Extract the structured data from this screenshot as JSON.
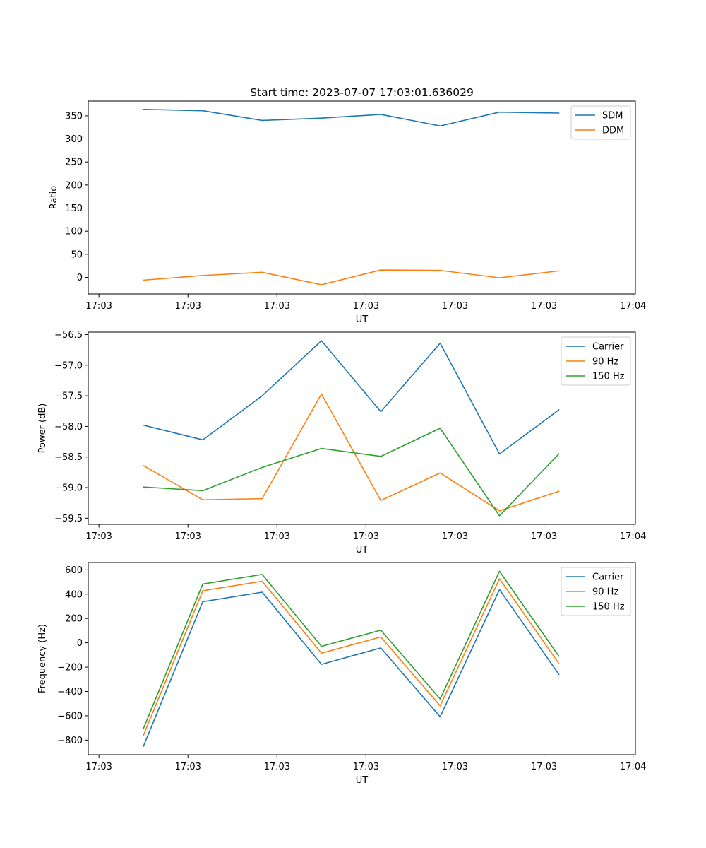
{
  "chart_data": [
    {
      "type": "line",
      "title": "Start time: 2023-07-07 17:03:01.636029",
      "xlabel": "UT",
      "ylabel": "Ratio",
      "xlim": [
        -0.18,
        9.04
      ],
      "ylim": [
        -36,
        382
      ],
      "x": [
        0.75,
        1.75,
        2.75,
        3.75,
        4.75,
        5.75,
        6.75,
        7.75
      ],
      "xticks": [
        0,
        1.5,
        3,
        4.5,
        6,
        7.5,
        9
      ],
      "xticklabels": [
        "17:03",
        "17:03",
        "17:03",
        "17:03",
        "17:03",
        "17:03",
        "17:04"
      ],
      "yticks": [
        0,
        50,
        100,
        150,
        200,
        250,
        300,
        350
      ],
      "yticklabels": [
        "0",
        "50",
        "100",
        "150",
        "200",
        "250",
        "300",
        "350"
      ],
      "legend": "top-right",
      "series": [
        {
          "name": "SDM",
          "color": "#1f77b4",
          "values": [
            364,
            361,
            340,
            345,
            353,
            328,
            358,
            356
          ]
        },
        {
          "name": "DDM",
          "color": "#ff7f0e",
          "values": [
            -6,
            4,
            11,
            -16,
            16,
            15,
            -1,
            14
          ]
        }
      ]
    },
    {
      "type": "line",
      "title": "",
      "xlabel": "UT",
      "ylabel": "Power (dB)",
      "xlim": [
        -0.18,
        9.04
      ],
      "ylim": [
        -59.6,
        -56.46
      ],
      "x": [
        0.75,
        1.75,
        2.75,
        3.75,
        4.75,
        5.75,
        6.75,
        7.75
      ],
      "xticks": [
        0,
        1.5,
        3,
        4.5,
        6,
        7.5,
        9
      ],
      "xticklabels": [
        "17:03",
        "17:03",
        "17:03",
        "17:03",
        "17:03",
        "17:03",
        "17:04"
      ],
      "yticks": [
        -59.5,
        -59.0,
        -58.5,
        -58.0,
        -57.5,
        -57.0,
        -56.5
      ],
      "yticklabels": [
        "−59.5",
        "−59.0",
        "−58.5",
        "−58.0",
        "−57.5",
        "−57.0",
        "−56.5"
      ],
      "legend": "top-right",
      "series": [
        {
          "name": "Carrier",
          "color": "#1f77b4",
          "values": [
            -57.98,
            -58.22,
            -57.5,
            -56.6,
            -57.76,
            -56.64,
            -58.45,
            -57.73
          ]
        },
        {
          "name": "90 Hz",
          "color": "#ff7f0e",
          "values": [
            -58.64,
            -59.2,
            -59.18,
            -57.47,
            -59.21,
            -58.76,
            -59.38,
            -59.06
          ]
        },
        {
          "name": "150 Hz",
          "color": "#2ca02c",
          "values": [
            -58.99,
            -59.05,
            -58.67,
            -58.36,
            -58.49,
            -58.03,
            -59.46,
            -58.45
          ]
        }
      ]
    },
    {
      "type": "line",
      "title": "",
      "xlabel": "UT",
      "ylabel": "Frequency (Hz)",
      "xlim": [
        -0.18,
        9.04
      ],
      "ylim": [
        -920,
        660
      ],
      "x": [
        0.75,
        1.75,
        2.75,
        3.75,
        4.75,
        5.75,
        6.75,
        7.75
      ],
      "xticks": [
        0,
        1.5,
        3,
        4.5,
        6,
        7.5,
        9
      ],
      "xticklabels": [
        "17:03",
        "17:03",
        "17:03",
        "17:03",
        "17:03",
        "17:03",
        "17:04"
      ],
      "yticks": [
        -800,
        -600,
        -400,
        -200,
        0,
        200,
        400,
        600
      ],
      "yticklabels": [
        "−800",
        "−600",
        "−400",
        "−200",
        "0",
        "200",
        "400",
        "600"
      ],
      "legend": "top-right",
      "series": [
        {
          "name": "Carrier",
          "color": "#1f77b4",
          "values": [
            -850,
            338,
            416,
            -177,
            -42,
            -608,
            437,
            -259
          ]
        },
        {
          "name": "90 Hz",
          "color": "#ff7f0e",
          "values": [
            -760,
            428,
            506,
            -85,
            48,
            -518,
            526,
            -170
          ]
        },
        {
          "name": "150 Hz",
          "color": "#2ca02c",
          "values": [
            -705,
            483,
            562,
            -29,
            104,
            -462,
            588,
            -110
          ]
        }
      ]
    }
  ]
}
